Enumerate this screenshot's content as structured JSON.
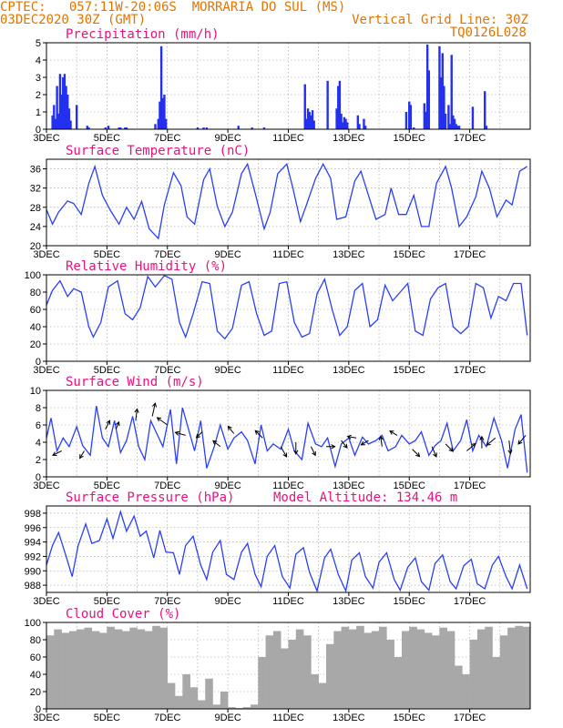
{
  "header": {
    "station": "CPTEC:   057:11W-20:06S  MORRARIA DO SUL (MS)",
    "run": "03DEC2020 30Z (GMT)",
    "grid_note": "Vertical Grid Line: 30Z",
    "code": "TQ0126L028"
  },
  "colors": {
    "header": "#e07400",
    "title": "#e8117f",
    "line": "#2b3ff5",
    "bar": "#2330f0",
    "cloud": "#a8a8a8",
    "arrow": "#000000"
  },
  "chart_data": [
    {
      "type": "bar",
      "title": "Precipitation (mm/h)",
      "xticks": [
        "3DEC",
        "5DEC",
        "7DEC",
        "9DEC",
        "11DEC",
        "13DEC",
        "15DEC",
        "17DEC"
      ],
      "ylim": [
        0,
        5
      ],
      "yticks": [
        0,
        1,
        2,
        3,
        4,
        5
      ],
      "grid": true,
      "x_days": [
        0.2,
        0.25,
        0.3,
        0.35,
        0.4,
        0.45,
        0.5,
        0.55,
        0.6,
        0.65,
        0.7,
        0.75,
        0.8,
        1.0,
        1.35,
        1.4,
        1.95,
        2.05,
        2.4,
        2.45,
        2.6,
        2.65,
        3.6,
        3.7,
        3.75,
        3.8,
        3.85,
        3.9,
        3.95,
        5.0,
        5.2,
        5.3,
        6.35,
        6.8,
        7.2,
        8.55,
        8.6,
        8.65,
        8.7,
        8.75,
        8.8,
        8.85,
        9.3,
        9.6,
        9.65,
        9.7,
        9.75,
        9.8,
        9.85,
        9.9,
        9.95,
        10.3,
        10.35,
        10.5,
        10.55,
        11.9,
        12.0,
        12.05,
        12.15,
        12.5,
        12.55,
        12.6,
        12.65,
        13.0,
        13.05,
        13.1,
        13.15,
        13.2,
        13.3,
        13.35,
        13.4,
        13.45,
        13.5,
        13.55,
        13.6,
        13.65,
        14.1,
        14.5,
        14.55
      ],
      "values": [
        0.8,
        1.4,
        0.6,
        2.5,
        0.9,
        3.2,
        2.0,
        3.0,
        3.2,
        2.5,
        2.0,
        1.2,
        0.5,
        1.4,
        0.2,
        0.1,
        0.1,
        0.2,
        0.1,
        0.1,
        0.1,
        0.1,
        0.3,
        0.6,
        1.6,
        4.8,
        1.8,
        2.0,
        0.6,
        0.1,
        0.1,
        0.1,
        0.2,
        0.1,
        0.1,
        2.6,
        0.6,
        1.2,
        1.0,
        0.8,
        1.1,
        0.5,
        2.8,
        1.2,
        2.5,
        2.8,
        0.9,
        0.4,
        0.7,
        0.6,
        0.4,
        0.8,
        0.3,
        0.6,
        0.2,
        1.0,
        1.6,
        1.4,
        0.1,
        1.5,
        1.0,
        4.9,
        3.4,
        4.8,
        3.0,
        4.4,
        2.5,
        0.9,
        1.4,
        0.3,
        4.3,
        0.8,
        0.6,
        0.3,
        0.2,
        0.2,
        1.3,
        2.2,
        0.2
      ]
    },
    {
      "type": "line",
      "title": "Surface Temperature (nC)",
      "xticks": [
        "3DEC",
        "5DEC",
        "7DEC",
        "9DEC",
        "11DEC",
        "13DEC",
        "15DEC",
        "17DEC"
      ],
      "ylim": [
        20,
        38
      ],
      "yticks": [
        20,
        24,
        28,
        32,
        36
      ],
      "grid": true,
      "x_days": [
        0,
        0.2,
        0.4,
        0.7,
        0.9,
        1.15,
        1.4,
        1.6,
        1.85,
        2.1,
        2.4,
        2.65,
        2.9,
        3.15,
        3.4,
        3.7,
        3.9,
        4.2,
        4.45,
        4.65,
        4.9,
        5.2,
        5.4,
        5.65,
        5.9,
        6.15,
        6.45,
        6.65,
        6.9,
        7.2,
        7.4,
        7.65,
        7.95,
        8.15,
        8.4,
        8.6,
        8.9,
        9.15,
        9.4,
        9.6,
        9.9,
        10.2,
        10.4,
        10.6,
        10.9,
        11.2,
        11.4,
        11.65,
        11.9,
        12.15,
        12.4,
        12.65,
        12.9,
        13.2,
        13.4,
        13.65,
        13.9,
        14.2,
        14.4,
        14.65,
        14.9,
        15.2,
        15.4,
        15.65,
        15.9
      ],
      "values": [
        27.5,
        24.5,
        27,
        29.3,
        28.8,
        26.5,
        33,
        36.5,
        30.5,
        27.5,
        24.5,
        28,
        25.5,
        29.2,
        23.5,
        21.5,
        28.5,
        35.2,
        32.5,
        26,
        24.5,
        33.8,
        36,
        28.2,
        24,
        27,
        35,
        37,
        31,
        23.5,
        27,
        35,
        37,
        32,
        25,
        28.5,
        34,
        37,
        34,
        25.5,
        26,
        33.5,
        35.5,
        31.5,
        25.5,
        26.5,
        32,
        26.5,
        26.5,
        30.5,
        24,
        24,
        33,
        36.5,
        32,
        24,
        26,
        30.2,
        35.5,
        32,
        26,
        29.5,
        28.5,
        35.5,
        36.5
      ]
    },
    {
      "type": "line",
      "title": "Relative Humidity (%)",
      "xticks": [
        "3DEC",
        "5DEC",
        "7DEC",
        "9DEC",
        "11DEC",
        "13DEC",
        "15DEC",
        "17DEC"
      ],
      "ylim": [
        0,
        100
      ],
      "yticks": [
        0,
        20,
        40,
        60,
        80,
        100
      ],
      "grid": true,
      "x_days": [
        0,
        0.2,
        0.45,
        0.7,
        0.9,
        1.15,
        1.4,
        1.55,
        1.8,
        2.05,
        2.35,
        2.6,
        2.85,
        3.1,
        3.35,
        3.6,
        3.9,
        4.15,
        4.4,
        4.6,
        4.85,
        5.15,
        5.4,
        5.65,
        5.9,
        6.15,
        6.45,
        6.7,
        6.95,
        7.2,
        7.45,
        7.7,
        7.95,
        8.2,
        8.45,
        8.7,
        8.95,
        9.2,
        9.45,
        9.7,
        9.95,
        10.2,
        10.45,
        10.7,
        10.95,
        11.2,
        11.45,
        11.7,
        11.95,
        12.2,
        12.45,
        12.7,
        12.95,
        13.2,
        13.45,
        13.7,
        13.95,
        14.2,
        14.45,
        14.7,
        14.95,
        15.2,
        15.45,
        15.7,
        15.9
      ],
      "values": [
        65,
        82,
        93,
        75,
        84,
        80,
        40,
        28,
        45,
        86,
        93,
        55,
        48,
        62,
        98,
        86,
        99,
        95,
        45,
        28,
        55,
        92,
        90,
        35,
        26,
        38,
        88,
        92,
        55,
        30,
        35,
        90,
        92,
        45,
        28,
        32,
        78,
        95,
        60,
        30,
        40,
        82,
        90,
        40,
        48,
        88,
        70,
        80,
        90,
        35,
        30,
        72,
        85,
        90,
        40,
        32,
        40,
        90,
        85,
        50,
        75,
        70,
        90,
        90,
        30
      ]
    },
    {
      "type": "line",
      "title": "Surface Wind (m/s)",
      "xticks": [
        "3DEC",
        "5DEC",
        "7DEC",
        "9DEC",
        "11DEC",
        "13DEC",
        "15DEC",
        "17DEC"
      ],
      "ylim": [
        0,
        10
      ],
      "yticks": [
        0,
        2,
        4,
        6,
        8,
        10
      ],
      "grid": true,
      "x_days": [
        0,
        0.15,
        0.35,
        0.55,
        0.75,
        1.0,
        1.2,
        1.45,
        1.65,
        1.85,
        2.05,
        2.25,
        2.45,
        2.65,
        2.85,
        3.05,
        3.25,
        3.45,
        3.65,
        3.85,
        4.1,
        4.3,
        4.5,
        4.7,
        4.9,
        5.1,
        5.3,
        5.55,
        5.75,
        6.0,
        6.2,
        6.45,
        6.65,
        6.9,
        7.1,
        7.3,
        7.5,
        7.75,
        8.0,
        8.2,
        8.45,
        8.65,
        8.9,
        9.1,
        9.3,
        9.55,
        9.75,
        10.0,
        10.2,
        10.45,
        10.65,
        10.9,
        11.1,
        11.3,
        11.55,
        11.75,
        12.0,
        12.2,
        12.4,
        12.65,
        12.85,
        13.05,
        13.25,
        13.45,
        13.7,
        13.9,
        14.1,
        14.3,
        14.55,
        14.8,
        15.05,
        15.25,
        15.5,
        15.7,
        15.9
      ],
      "values": [
        4.5,
        6.8,
        3,
        4.5,
        3.5,
        5.8,
        3.6,
        2.5,
        8.2,
        4.5,
        3.5,
        6.5,
        2.8,
        4.2,
        7,
        3.5,
        2,
        6.5,
        5,
        3.5,
        7.8,
        1.5,
        8,
        5.5,
        3,
        6.5,
        1,
        3.5,
        6,
        3.2,
        4.5,
        5.2,
        4.2,
        1.5,
        6,
        3,
        3.8,
        3.2,
        5.5,
        3,
        2,
        6.2,
        3.8,
        3.5,
        4.5,
        1.2,
        3.8,
        4.5,
        2.5,
        4.6,
        3.8,
        4.2,
        4.8,
        3,
        3.5,
        4.8,
        3.8,
        4.2,
        5.2,
        2.5,
        3.6,
        4.2,
        6.2,
        3,
        4.2,
        6.6,
        3,
        4.8,
        3.5,
        6.8,
        4.2,
        1,
        5.5,
        7.2,
        0.5
      ],
      "arrows": [
        {
          "x": 0.5,
          "y": 3.0,
          "u": -0.6,
          "v": -0.3
        },
        {
          "x": 1.25,
          "y": 3.0,
          "u": -0.3,
          "v": -0.5
        },
        {
          "x": 1.95,
          "y": 5.5,
          "u": 0.3,
          "v": 0.6
        },
        {
          "x": 2.3,
          "y": 5.5,
          "u": 0.2,
          "v": 0.5
        },
        {
          "x": 2.95,
          "y": 6.5,
          "u": 0.1,
          "v": 0.8
        },
        {
          "x": 3.5,
          "y": 7.0,
          "u": 0.2,
          "v": 0.9
        },
        {
          "x": 4.0,
          "y": 6.0,
          "u": -0.7,
          "v": 0.5
        },
        {
          "x": 4.6,
          "y": 4.8,
          "u": -0.7,
          "v": 0.2
        },
        {
          "x": 5.15,
          "y": 5.2,
          "u": -0.4,
          "v": -0.4
        },
        {
          "x": 5.75,
          "y": 3.5,
          "u": -0.5,
          "v": 0.4
        },
        {
          "x": 6.2,
          "y": 5.0,
          "u": -0.4,
          "v": 0.5
        },
        {
          "x": 7.15,
          "y": 4.5,
          "u": -0.5,
          "v": 0.5
        },
        {
          "x": 7.75,
          "y": 3.5,
          "u": 0.4,
          "v": -0.7
        },
        {
          "x": 8.25,
          "y": 4.0,
          "u": 0.0,
          "v": -0.8
        },
        {
          "x": 8.75,
          "y": 3.5,
          "u": 0.3,
          "v": -0.6
        },
        {
          "x": 9.25,
          "y": 3.5,
          "u": 0.6,
          "v": 0.0
        },
        {
          "x": 9.75,
          "y": 4.2,
          "u": 0.4,
          "v": -0.5
        },
        {
          "x": 10.25,
          "y": 4.5,
          "u": -0.6,
          "v": 0.1
        },
        {
          "x": 10.65,
          "y": 4.2,
          "u": -0.5,
          "v": -0.3
        },
        {
          "x": 11.1,
          "y": 3.5,
          "u": -0.1,
          "v": 0.7
        },
        {
          "x": 11.6,
          "y": 4.8,
          "u": -0.5,
          "v": 0.3
        },
        {
          "x": 12.1,
          "y": 3.2,
          "u": 0.5,
          "v": -0.5
        },
        {
          "x": 12.75,
          "y": 3.5,
          "u": 0.3,
          "v": -0.7
        },
        {
          "x": 13.2,
          "y": 3.8,
          "u": 0.5,
          "v": -0.5
        },
        {
          "x": 13.9,
          "y": 3.0,
          "u": 0.6,
          "v": 0.5
        },
        {
          "x": 14.4,
          "y": 3.3,
          "u": 0.0,
          "v": 0.8
        },
        {
          "x": 14.85,
          "y": 4.5,
          "u": -0.6,
          "v": -0.5
        },
        {
          "x": 15.3,
          "y": 4.2,
          "u": 0.1,
          "v": -0.9
        },
        {
          "x": 15.85,
          "y": 4.8,
          "u": -0.5,
          "v": -0.6
        }
      ]
    },
    {
      "type": "line",
      "title": "Surface Pressure (hPa)",
      "annotation": "Model Altitude: 134.46 m",
      "xticks": [
        "3DEC",
        "5DEC",
        "7DEC",
        "9DEC",
        "11DEC",
        "13DEC",
        "15DEC",
        "17DEC"
      ],
      "ylim": [
        987,
        999
      ],
      "yticks": [
        988,
        990,
        992,
        994,
        996,
        998
      ],
      "grid": true,
      "x_days": [
        0,
        0.2,
        0.4,
        0.65,
        0.85,
        1.05,
        1.3,
        1.5,
        1.75,
        2.0,
        2.2,
        2.45,
        2.65,
        2.9,
        3.1,
        3.3,
        3.55,
        3.75,
        3.95,
        4.2,
        4.4,
        4.6,
        4.85,
        5.1,
        5.3,
        5.5,
        5.75,
        5.95,
        6.2,
        6.45,
        6.65,
        6.9,
        7.1,
        7.3,
        7.55,
        7.8,
        8.05,
        8.25,
        8.5,
        8.7,
        8.95,
        9.2,
        9.4,
        9.65,
        9.9,
        10.1,
        10.35,
        10.55,
        10.8,
        11.0,
        11.25,
        11.5,
        11.7,
        11.95,
        12.2,
        12.4,
        12.65,
        12.85,
        13.1,
        13.35,
        13.55,
        13.8,
        14.05,
        14.25,
        14.5,
        14.75,
        14.95,
        15.2,
        15.4,
        15.65,
        15.9
      ],
      "values": [
        990.8,
        993.5,
        995.3,
        992,
        989.2,
        993.5,
        996.5,
        993.8,
        994.2,
        997.2,
        994.5,
        998.2,
        995.5,
        997.6,
        994.8,
        995.5,
        991.8,
        995.6,
        992.6,
        992.5,
        989.5,
        993.5,
        994.8,
        990.8,
        988.8,
        992.6,
        994.2,
        989.5,
        988.8,
        992.6,
        993.8,
        989.5,
        987.8,
        992,
        993.5,
        989.2,
        987.6,
        992.3,
        993.2,
        989.8,
        987.2,
        991.8,
        993,
        989.5,
        987.2,
        991.5,
        992.5,
        989.2,
        987.6,
        991.2,
        992.5,
        988.8,
        987.3,
        990.5,
        991.8,
        988.5,
        987.3,
        991,
        992.2,
        988.5,
        987.5,
        990.7,
        991.6,
        988.2,
        987.5,
        990.8,
        992,
        989.2,
        987.5,
        990.8,
        987.5
      ]
    },
    {
      "type": "bar",
      "title": "Cloud Cover (%)",
      "xticks": [
        "3DEC",
        "5DEC",
        "7DEC",
        "9DEC",
        "11DEC",
        "13DEC",
        "15DEC",
        "17DEC"
      ],
      "ylim": [
        0,
        100
      ],
      "yticks": [
        0,
        20,
        40,
        60,
        80,
        100
      ],
      "grid": true,
      "x_days": [
        0,
        0.25,
        0.5,
        0.75,
        1.0,
        1.25,
        1.5,
        1.75,
        2.0,
        2.25,
        2.5,
        2.75,
        3.0,
        3.25,
        3.5,
        3.75,
        4.0,
        4.25,
        4.5,
        4.75,
        5.0,
        5.25,
        5.5,
        5.75,
        6.0,
        6.25,
        6.5,
        6.75,
        7.0,
        7.25,
        7.5,
        7.75,
        8.0,
        8.25,
        8.5,
        8.75,
        9.0,
        9.25,
        9.5,
        9.75,
        10.0,
        10.25,
        10.5,
        10.75,
        11.0,
        11.25,
        11.5,
        11.75,
        12.0,
        12.25,
        12.5,
        12.75,
        13.0,
        13.25,
        13.5,
        13.75,
        14.0,
        14.25,
        14.5,
        14.75,
        15.0,
        15.25,
        15.5,
        15.75
      ],
      "values": [
        85,
        92,
        88,
        90,
        92,
        94,
        90,
        88,
        95,
        92,
        90,
        94,
        92,
        90,
        96,
        94,
        30,
        15,
        40,
        25,
        10,
        35,
        5,
        20,
        2,
        1,
        2,
        5,
        60,
        85,
        90,
        70,
        80,
        92,
        85,
        40,
        30,
        75,
        90,
        95,
        92,
        96,
        88,
        90,
        95,
        80,
        60,
        90,
        95,
        92,
        88,
        85,
        94,
        90,
        50,
        40,
        80,
        92,
        95,
        60,
        85,
        94,
        96,
        95
      ]
    }
  ]
}
